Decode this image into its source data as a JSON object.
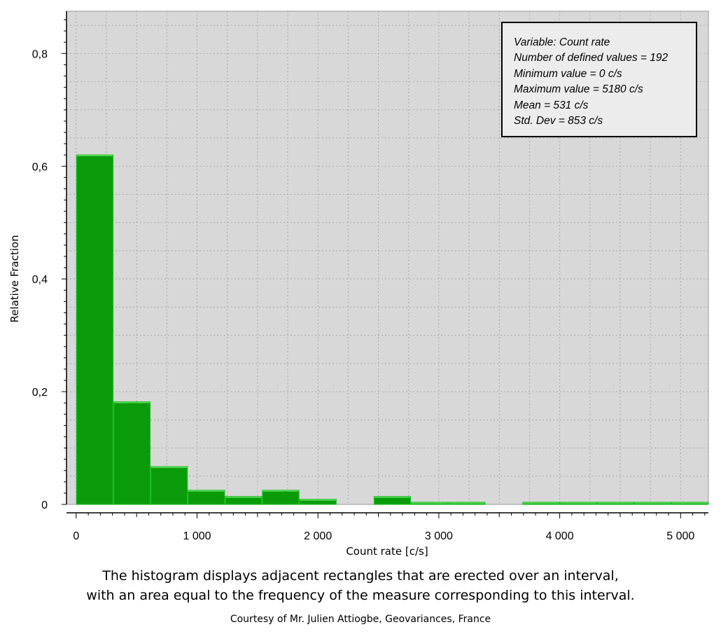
{
  "chart_data": {
    "type": "bar",
    "title": "",
    "xlabel": "Count rate [c/s]",
    "ylabel": "Relative Fraction",
    "xlim": [
      -80,
      5230
    ],
    "ylim": [
      0,
      0.875
    ],
    "x_ticks": [
      0,
      1000,
      2000,
      3000,
      4000,
      5000
    ],
    "x_tick_labels": [
      "0",
      "1 000",
      "2 000",
      "3 000",
      "4 000",
      "5 000"
    ],
    "y_ticks": [
      0,
      0.2,
      0.4,
      0.6,
      0.8
    ],
    "y_tick_labels": [
      "0",
      "0,2",
      "0,4",
      "0,6",
      "0,8"
    ],
    "grid": true,
    "bar_color": "#0a9b0a",
    "plot_background": "#d8d8d8",
    "bins": [
      {
        "x0": 0,
        "x1": 308,
        "value": 0.62
      },
      {
        "x0": 308,
        "x1": 615,
        "value": 0.182
      },
      {
        "x0": 615,
        "x1": 923,
        "value": 0.067
      },
      {
        "x0": 923,
        "x1": 1231,
        "value": 0.025
      },
      {
        "x0": 1231,
        "x1": 1538,
        "value": 0.014
      },
      {
        "x0": 1538,
        "x1": 1846,
        "value": 0.025
      },
      {
        "x0": 1846,
        "x1": 2154,
        "value": 0.009
      },
      {
        "x0": 2154,
        "x1": 2462,
        "value": 0
      },
      {
        "x0": 2462,
        "x1": 2769,
        "value": 0.014
      },
      {
        "x0": 2769,
        "x1": 3077,
        "value": 0.003
      },
      {
        "x0": 3077,
        "x1": 3385,
        "value": 0.003
      },
      {
        "x0": 3385,
        "x1": 3692,
        "value": 0
      },
      {
        "x0": 3692,
        "x1": 4000,
        "value": 0.003
      },
      {
        "x0": 4000,
        "x1": 4308,
        "value": 0.003
      },
      {
        "x0": 4308,
        "x1": 4615,
        "value": 0.003
      },
      {
        "x0": 4615,
        "x1": 4923,
        "value": 0.003
      },
      {
        "x0": 4923,
        "x1": 5230,
        "value": 0.003
      }
    ],
    "annotation": [
      "Variable: Count rate",
      "Number of defined values = 192",
      "Minimum value = 0 c/s",
      "Maximum value = 5180 c/s",
      "Mean = 531 c/s",
      "Std. Dev = 853 c/s"
    ]
  },
  "caption": {
    "line1": "The histogram displays adjacent rectangles that are erected over an interval,",
    "line2": "with an area equal to the frequency of the measure corresponding to this interval.",
    "credit": "Courtesy of Mr. Julien Attiogbe, Geovariances, France"
  }
}
